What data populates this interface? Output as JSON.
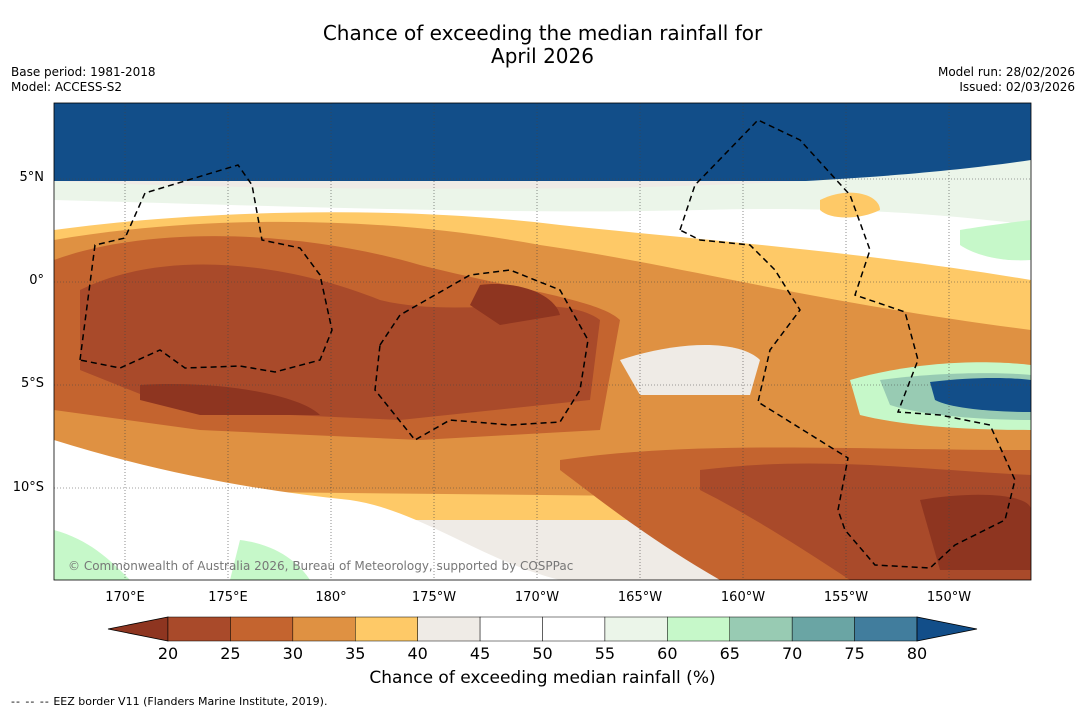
{
  "title_line1": "Chance of exceeding the median rainfall for",
  "title_line2": "April 2026",
  "meta": {
    "base_period": "Base period: 1981-2018",
    "model": "Model: ACCESS-S2",
    "model_run": "Model run: 28/02/2026",
    "issued": "Issued: 02/03/2026"
  },
  "attribution": "© Commonwealth of Australia 2026, Bureau of Meteorology, supported by COSPPac",
  "lat_labels": [
    "5°N",
    "0°",
    "5°S",
    "10°S"
  ],
  "lon_labels": [
    "170°E",
    "175°E",
    "180°",
    "175°W",
    "170°W",
    "165°W",
    "160°W",
    "155°W",
    "150°W"
  ],
  "colorbar": {
    "label": "Chance of exceeding median rainfall (%)",
    "ticks": [
      "20",
      "25",
      "30",
      "35",
      "40",
      "45",
      "50",
      "55",
      "60",
      "65",
      "70",
      "75",
      "80"
    ],
    "colors": [
      "#8e3520",
      "#a94a2a",
      "#c4642f",
      "#df9142",
      "#fec967",
      "#efebe6",
      "#ffffff",
      "#ffffff",
      "#ebf5e9",
      "#c6f8c9",
      "#98cbb3",
      "#6aa5a4",
      "#417d9d",
      "#124e89"
    ]
  },
  "footnote": {
    "dash": "-- -- --",
    "text": "EEZ border V11 (Flanders Marine Institute, 2019)."
  }
}
